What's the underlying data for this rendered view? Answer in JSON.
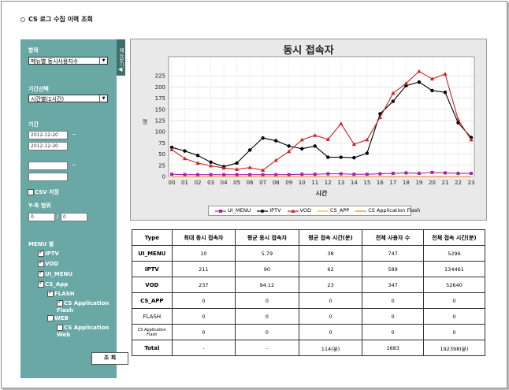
{
  "page_title": "CS 로그 수집 이력 조회",
  "sidebar": {
    "handle_label": "메뉴닫기",
    "item_label": "항목",
    "item_select": "메뉴별 동시사용자수",
    "period_label": "기간선택",
    "period_select": "시간별(1시간)",
    "date_label": "기간",
    "date_from": "2012-12-20",
    "date_to": "2012-12-20",
    "date_sep": "~",
    "date2_sep": "~",
    "csv_label": "CSV 저장",
    "yaxis_label": "Y-축 범위",
    "y_min": "0",
    "y_max": "0",
    "y_sep": "/",
    "menu_label": "MENU 별",
    "menu_items": [
      {
        "label": "IPTV",
        "checked": true
      },
      {
        "label": "VOD",
        "checked": true
      },
      {
        "label": "UI_MENU",
        "checked": true
      },
      {
        "label": "CS_App",
        "checked": true
      },
      {
        "label": "FLASH",
        "checked": true
      },
      {
        "label": "CS Application Flash",
        "checked": true
      },
      {
        "label": "WEB",
        "checked": false
      },
      {
        "label": "CS Application Web",
        "checked": false
      }
    ],
    "query_button": "조 회"
  },
  "chart_data": {
    "type": "line",
    "title": "동시 접속자",
    "xlabel": "시간",
    "ylabel": "명",
    "ylim": [
      0,
      250
    ],
    "yticks": [
      0,
      25,
      50,
      75,
      100,
      125,
      150,
      175,
      200,
      225
    ],
    "categories": [
      "00",
      "01",
      "02",
      "03",
      "04",
      "05",
      "06",
      "07",
      "08",
      "09",
      "10",
      "11",
      "12",
      "13",
      "14",
      "15",
      "16",
      "17",
      "18",
      "19",
      "20",
      "21",
      "22",
      "23"
    ],
    "grid": true,
    "legend": "bottom",
    "series": [
      {
        "name": "UI_MENU",
        "color": "#aa22aa",
        "marker": "square",
        "values": [
          5,
          4,
          4,
          4,
          4,
          4,
          4,
          4,
          4,
          4,
          5,
          5,
          6,
          6,
          5,
          5,
          6,
          7,
          8,
          7,
          9,
          8,
          7,
          7
        ]
      },
      {
        "name": "IPTV",
        "color": "#000000",
        "marker": "circle",
        "values": [
          65,
          57,
          47,
          32,
          22,
          30,
          59,
          86,
          80,
          68,
          62,
          68,
          43,
          43,
          42,
          52,
          140,
          168,
          203,
          211,
          192,
          188,
          120,
          87
        ]
      },
      {
        "name": "VOD",
        "color": "#cc2222",
        "marker": "triangle",
        "values": [
          60,
          40,
          30,
          24,
          19,
          16,
          20,
          14,
          36,
          56,
          82,
          92,
          83,
          118,
          72,
          82,
          132,
          186,
          208,
          235,
          218,
          229,
          127,
          82
        ]
      },
      {
        "name": "CS_APP",
        "color": "#e0c020",
        "marker": "none",
        "values": [
          0,
          0,
          0,
          0,
          0,
          0,
          0,
          0,
          0,
          0,
          0,
          0,
          0,
          0,
          0,
          0,
          0,
          0,
          0,
          0,
          0,
          0,
          0,
          0
        ]
      },
      {
        "name": "CS Application Flash",
        "color": "#f08020",
        "marker": "none",
        "values": [
          0,
          0,
          0,
          0,
          0,
          0,
          0,
          0,
          0,
          0,
          0,
          0,
          0,
          0,
          0,
          0,
          0,
          0,
          0,
          0,
          0,
          0,
          0,
          0
        ]
      }
    ]
  },
  "table": {
    "headers": [
      "Type",
      "최대 동시 접속자",
      "평균 동시 접속자",
      "평균 접속 시간(분)",
      "전체 사용자 수",
      "전체 접속 시간(분)"
    ],
    "rows": [
      [
        "UI_MENU",
        "10",
        "5.79",
        "38",
        "747",
        "5296"
      ],
      [
        "IPTV",
        "211",
        "90",
        "62",
        "589",
        "134461"
      ],
      [
        "VOD",
        "237",
        "94.12",
        "23",
        "347",
        "52640"
      ],
      [
        "CS_APP",
        "0",
        "0",
        "0",
        "0",
        "0"
      ],
      [
        "FLASH",
        "0",
        "0",
        "0",
        "0",
        "0"
      ],
      [
        "CS Application Flash",
        "0",
        "0",
        "0",
        "0",
        "0"
      ],
      [
        "Total",
        "-",
        "-",
        "114(분)",
        "1683",
        "192398(분)"
      ]
    ]
  }
}
